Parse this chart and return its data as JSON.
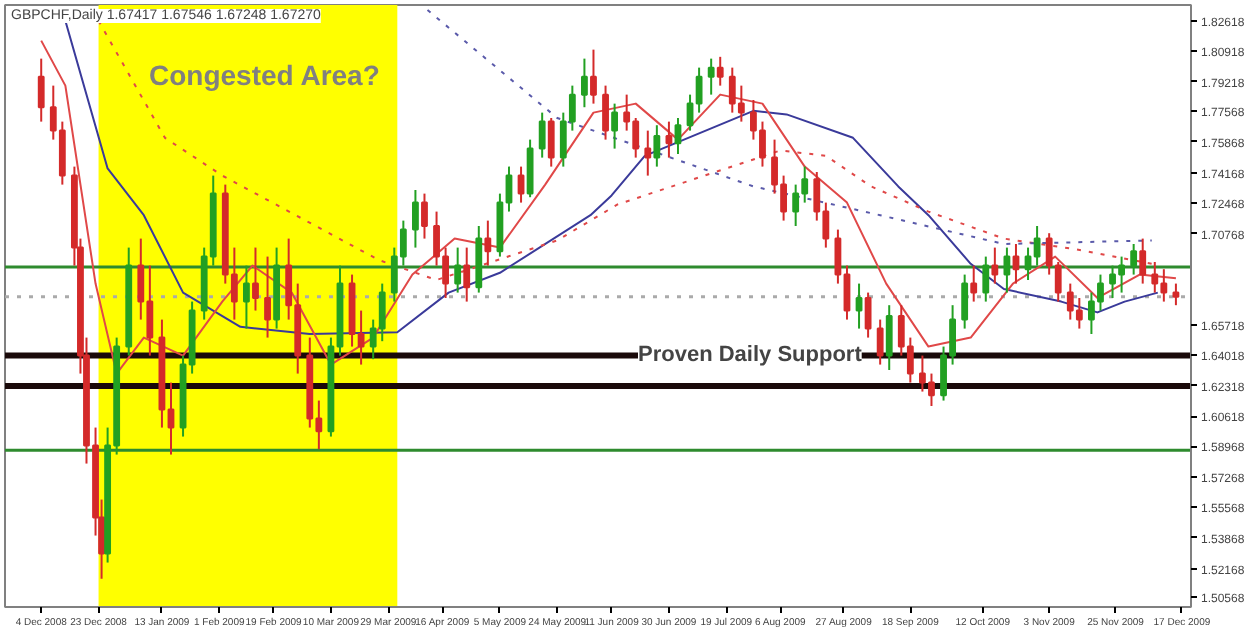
{
  "chart_data": {
    "type": "candlestick",
    "title": "GBPCHF,Daily 1.67417 1.67546 1.67248 1.67270",
    "annotations": [
      "Congested Area?"
    ],
    "x": [
      "2008-12-04",
      "2008-12-08",
      "2008-12-11",
      "2008-12-15",
      "2008-12-17",
      "2008-12-19",
      "2008-12-22",
      "2008-12-24",
      "2008-12-26",
      "2008-12-29",
      "2009-01-02",
      "2009-01-06",
      "2009-01-09",
      "2009-01-13",
      "2009-01-16",
      "2009-01-20",
      "2009-01-23",
      "2009-01-27",
      "2009-01-30",
      "2009-02-03",
      "2009-02-06",
      "2009-02-10",
      "2009-02-13",
      "2009-02-17",
      "2009-02-20",
      "2009-02-24",
      "2009-02-27",
      "2009-03-03",
      "2009-03-06",
      "2009-03-10",
      "2009-03-13",
      "2009-03-17",
      "2009-03-20",
      "2009-03-24",
      "2009-03-27",
      "2009-03-31",
      "2009-04-03",
      "2009-04-07",
      "2009-04-10",
      "2009-04-14",
      "2009-04-17",
      "2009-04-21",
      "2009-04-24",
      "2009-04-28",
      "2009-05-01",
      "2009-05-05",
      "2009-05-08",
      "2009-05-12",
      "2009-05-15",
      "2009-05-19",
      "2009-05-22",
      "2009-05-26",
      "2009-05-29",
      "2009-06-02",
      "2009-06-05",
      "2009-06-09",
      "2009-06-12",
      "2009-06-16",
      "2009-06-19",
      "2009-06-23",
      "2009-06-26",
      "2009-06-30",
      "2009-07-03",
      "2009-07-07",
      "2009-07-10",
      "2009-07-14",
      "2009-07-17",
      "2009-07-21",
      "2009-07-24",
      "2009-07-28",
      "2009-07-31",
      "2009-08-04",
      "2009-08-07",
      "2009-08-11",
      "2009-08-14",
      "2009-08-18",
      "2009-08-21",
      "2009-08-25",
      "2009-08-28",
      "2009-09-01",
      "2009-09-04",
      "2009-09-08",
      "2009-09-11",
      "2009-09-15",
      "2009-09-18",
      "2009-09-22",
      "2009-09-25",
      "2009-09-29",
      "2009-10-02",
      "2009-10-06",
      "2009-10-09",
      "2009-10-13",
      "2009-10-16",
      "2009-10-20",
      "2009-10-23",
      "2009-10-27",
      "2009-10-30",
      "2009-11-03",
      "2009-11-06",
      "2009-11-10",
      "2009-11-13",
      "2009-11-17",
      "2009-11-20",
      "2009-11-24",
      "2009-11-27",
      "2009-12-01",
      "2009-12-04",
      "2009-12-08",
      "2009-12-11",
      "2009-12-15"
    ],
    "ohlc": [
      [
        1.795,
        1.805,
        1.77,
        1.778
      ],
      [
        1.778,
        1.79,
        1.76,
        1.765
      ],
      [
        1.765,
        1.77,
        1.735,
        1.74
      ],
      [
        1.74,
        1.745,
        1.69,
        1.7
      ],
      [
        1.7,
        1.705,
        1.63,
        1.64
      ],
      [
        1.64,
        1.65,
        1.58,
        1.59
      ],
      [
        1.59,
        1.6,
        1.54,
        1.55
      ],
      [
        1.55,
        1.56,
        1.516,
        1.53
      ],
      [
        1.53,
        1.6,
        1.525,
        1.59
      ],
      [
        1.59,
        1.65,
        1.585,
        1.645
      ],
      [
        1.645,
        1.7,
        1.64,
        1.69
      ],
      [
        1.69,
        1.705,
        1.66,
        1.67
      ],
      [
        1.67,
        1.69,
        1.64,
        1.65
      ],
      [
        1.65,
        1.66,
        1.6,
        1.61
      ],
      [
        1.61,
        1.625,
        1.585,
        1.6
      ],
      [
        1.6,
        1.64,
        1.595,
        1.635
      ],
      [
        1.635,
        1.67,
        1.63,
        1.665
      ],
      [
        1.665,
        1.7,
        1.66,
        1.695
      ],
      [
        1.695,
        1.74,
        1.69,
        1.73
      ],
      [
        1.73,
        1.735,
        1.68,
        1.685
      ],
      [
        1.685,
        1.7,
        1.66,
        1.67
      ],
      [
        1.67,
        1.69,
        1.655,
        1.68
      ],
      [
        1.68,
        1.7,
        1.665,
        1.672
      ],
      [
        1.672,
        1.695,
        1.65,
        1.66
      ],
      [
        1.66,
        1.7,
        1.655,
        1.69
      ],
      [
        1.69,
        1.705,
        1.66,
        1.668
      ],
      [
        1.668,
        1.68,
        1.63,
        1.64
      ],
      [
        1.64,
        1.65,
        1.6,
        1.605
      ],
      [
        1.605,
        1.615,
        1.588,
        1.598
      ],
      [
        1.598,
        1.65,
        1.595,
        1.645
      ],
      [
        1.645,
        1.69,
        1.64,
        1.68
      ],
      [
        1.68,
        1.685,
        1.645,
        1.652
      ],
      [
        1.652,
        1.665,
        1.635,
        1.645
      ],
      [
        1.645,
        1.66,
        1.638,
        1.655
      ],
      [
        1.655,
        1.68,
        1.648,
        1.675
      ],
      [
        1.675,
        1.7,
        1.67,
        1.695
      ],
      [
        1.695,
        1.715,
        1.69,
        1.71
      ],
      [
        1.71,
        1.732,
        1.7,
        1.725
      ],
      [
        1.725,
        1.73,
        1.705,
        1.712
      ],
      [
        1.712,
        1.72,
        1.69,
        1.695
      ],
      [
        1.695,
        1.7,
        1.672,
        1.68
      ],
      [
        1.68,
        1.7,
        1.675,
        1.69
      ],
      [
        1.69,
        1.7,
        1.67,
        1.678
      ],
      [
        1.678,
        1.712,
        1.675,
        1.705
      ],
      [
        1.705,
        1.715,
        1.69,
        1.698
      ],
      [
        1.698,
        1.73,
        1.695,
        1.725
      ],
      [
        1.725,
        1.745,
        1.72,
        1.74
      ],
      [
        1.74,
        1.745,
        1.725,
        1.73
      ],
      [
        1.73,
        1.76,
        1.728,
        1.755
      ],
      [
        1.755,
        1.775,
        1.75,
        1.77
      ],
      [
        1.77,
        1.772,
        1.745,
        1.75
      ],
      [
        1.75,
        1.775,
        1.745,
        1.77
      ],
      [
        1.77,
        1.79,
        1.765,
        1.785
      ],
      [
        1.785,
        1.805,
        1.778,
        1.795
      ],
      [
        1.795,
        1.81,
        1.78,
        1.785
      ],
      [
        1.785,
        1.79,
        1.76,
        1.765
      ],
      [
        1.765,
        1.78,
        1.755,
        1.775
      ],
      [
        1.775,
        1.785,
        1.765,
        1.77
      ],
      [
        1.77,
        1.772,
        1.75,
        1.755
      ],
      [
        1.755,
        1.765,
        1.74,
        1.75
      ],
      [
        1.75,
        1.768,
        1.745,
        1.762
      ],
      [
        1.762,
        1.77,
        1.75,
        1.758
      ],
      [
        1.758,
        1.772,
        1.752,
        1.768
      ],
      [
        1.768,
        1.785,
        1.765,
        1.78
      ],
      [
        1.78,
        1.8,
        1.775,
        1.795
      ],
      [
        1.795,
        1.805,
        1.785,
        1.8
      ],
      [
        1.8,
        1.806,
        1.79,
        1.795
      ],
      [
        1.795,
        1.8,
        1.775,
        1.78
      ],
      [
        1.78,
        1.79,
        1.77,
        1.775
      ],
      [
        1.775,
        1.782,
        1.76,
        1.765
      ],
      [
        1.765,
        1.77,
        1.745,
        1.75
      ],
      [
        1.75,
        1.76,
        1.73,
        1.735
      ],
      [
        1.735,
        1.74,
        1.715,
        1.72
      ],
      [
        1.72,
        1.735,
        1.712,
        1.73
      ],
      [
        1.73,
        1.745,
        1.725,
        1.738
      ],
      [
        1.738,
        1.742,
        1.715,
        1.72
      ],
      [
        1.72,
        1.725,
        1.7,
        1.705
      ],
      [
        1.705,
        1.71,
        1.68,
        1.685
      ],
      [
        1.685,
        1.69,
        1.66,
        1.665
      ],
      [
        1.665,
        1.68,
        1.655,
        1.672
      ],
      [
        1.672,
        1.675,
        1.65,
        1.655
      ],
      [
        1.655,
        1.66,
        1.635,
        1.64
      ],
      [
        1.64,
        1.668,
        1.632,
        1.662
      ],
      [
        1.662,
        1.668,
        1.64,
        1.645
      ],
      [
        1.645,
        1.65,
        1.625,
        1.63
      ],
      [
        1.63,
        1.64,
        1.62,
        1.625
      ],
      [
        1.625,
        1.63,
        1.612,
        1.618
      ],
      [
        1.618,
        1.645,
        1.615,
        1.64
      ],
      [
        1.64,
        1.668,
        1.635,
        1.66
      ],
      [
        1.66,
        1.685,
        1.655,
        1.68
      ],
      [
        1.68,
        1.69,
        1.67,
        1.675
      ],
      [
        1.675,
        1.695,
        1.67,
        1.69
      ],
      [
        1.69,
        1.7,
        1.68,
        1.685
      ],
      [
        1.685,
        1.7,
        1.675,
        1.695
      ],
      [
        1.695,
        1.702,
        1.68,
        1.688
      ],
      [
        1.688,
        1.7,
        1.682,
        1.695
      ],
      [
        1.695,
        1.712,
        1.69,
        1.705
      ],
      [
        1.705,
        1.708,
        1.685,
        1.69
      ],
      [
        1.69,
        1.692,
        1.67,
        1.675
      ],
      [
        1.675,
        1.68,
        1.66,
        1.665
      ],
      [
        1.665,
        1.672,
        1.655,
        1.66
      ],
      [
        1.66,
        1.675,
        1.652,
        1.67
      ],
      [
        1.67,
        1.685,
        1.665,
        1.68
      ],
      [
        1.68,
        1.69,
        1.672,
        1.685
      ],
      [
        1.685,
        1.695,
        1.675,
        1.69
      ],
      [
        1.69,
        1.702,
        1.685,
        1.698
      ],
      [
        1.698,
        1.705,
        1.68,
        1.685
      ],
      [
        1.685,
        1.692,
        1.675,
        1.68
      ],
      [
        1.68,
        1.688,
        1.67,
        1.675
      ],
      [
        1.675,
        1.68,
        1.668,
        1.6727
      ]
    ],
    "series": [
      {
        "type": "line",
        "color": "#3a3a9a",
        "line_style": "solid",
        "x": [
          "2008-12-12",
          "2008-12-26",
          "2009-01-07",
          "2009-01-20",
          "2009-02-08",
          "2009-03-03",
          "2009-04-01",
          "2009-04-18",
          "2009-05-05",
          "2009-06-04",
          "2009-06-11",
          "2009-06-22",
          "2009-07-28",
          "2009-08-08",
          "2009-08-30",
          "2009-09-14",
          "2009-09-24",
          "2009-10-08",
          "2009-10-19",
          "2009-11-07",
          "2009-11-19",
          "2009-11-28",
          "2009-12-09"
        ],
        "values": [
          1.826,
          1.744,
          1.718,
          1.675,
          1.656,
          1.652,
          1.653,
          1.675,
          1.686,
          1.718,
          1.729,
          1.751,
          1.776,
          1.774,
          1.761,
          1.734,
          1.718,
          1.691,
          1.677,
          1.67,
          1.664,
          1.67,
          1.675
        ]
      },
      {
        "type": "line",
        "color": "#e04848",
        "line_style": "dotted",
        "x": [
          "2008-12-23",
          "2009-01-14",
          "2009-02-02",
          "2009-03-26",
          "2009-04-14",
          "2009-05-24",
          "2009-06-13",
          "2009-08-06",
          "2009-08-21",
          "2009-09-05",
          "2009-09-24",
          "2009-10-19",
          "2009-11-12",
          "2009-12-07"
        ],
        "values": [
          1.826,
          1.761,
          1.74,
          1.693,
          1.682,
          1.704,
          1.724,
          1.754,
          1.751,
          1.734,
          1.72,
          1.705,
          1.699,
          1.691
        ]
      },
      {
        "type": "line",
        "color": "#5a5aaa",
        "line_style": "dotted",
        "x": [
          "2009-04-11",
          "2009-05-24",
          "2009-07-28",
          "2009-09-08",
          "2009-10-19",
          "2009-12-07"
        ],
        "values": [
          1.832,
          1.772,
          1.734,
          1.718,
          1.702,
          1.704
        ]
      },
      {
        "type": "line",
        "color": "#e04848",
        "line_style": "solid",
        "x": [
          "2008-12-04",
          "2008-12-12",
          "2008-12-22",
          "2008-12-29",
          "2009-01-07",
          "2009-01-20",
          "2009-02-02",
          "2009-02-12",
          "2009-02-25",
          "2009-03-10",
          "2009-03-24",
          "2009-04-06",
          "2009-04-20",
          "2009-05-05",
          "2009-05-20",
          "2009-06-05",
          "2009-06-19",
          "2009-07-03",
          "2009-07-17",
          "2009-07-31",
          "2009-08-14",
          "2009-08-28",
          "2009-09-10",
          "2009-09-24",
          "2009-10-08",
          "2009-10-22",
          "2009-11-05",
          "2009-11-19",
          "2009-12-03",
          "2009-12-15"
        ],
        "values": [
          1.815,
          1.79,
          1.68,
          1.63,
          1.65,
          1.64,
          1.67,
          1.69,
          1.675,
          1.635,
          1.65,
          1.685,
          1.705,
          1.7,
          1.735,
          1.775,
          1.78,
          1.76,
          1.785,
          1.78,
          1.745,
          1.725,
          1.68,
          1.645,
          1.65,
          1.68,
          1.695,
          1.672,
          1.685,
          1.683
        ]
      }
    ],
    "ref_lines": [
      {
        "axis": "y",
        "value": 1.6892,
        "color": "#2e8b2e",
        "line_style": "solid",
        "label": null
      },
      {
        "axis": "y",
        "value": 1.5874,
        "color": "#2e8b2e",
        "line_style": "solid",
        "label": null
      },
      {
        "axis": "y",
        "value": 1.6727,
        "color": "#aaaaaa",
        "line_style": "dotted",
        "label": null
      },
      {
        "axis": "y",
        "value": 1.6401,
        "color": "#1a0a0a",
        "line_style": "solid",
        "label": "Proven Daily Support"
      },
      {
        "axis": "y",
        "value": 1.6231,
        "color": "#1a0a0a",
        "line_style": "solid",
        "label": null
      }
    ],
    "bands": [
      {
        "axis": "x",
        "from": "2008-12-23",
        "to": "2009-04-01",
        "color": "#ffff00",
        "label": null
      }
    ],
    "xlim": [
      "2008-11-22",
      "2009-12-20"
    ],
    "xticks": [
      {
        "value": "2008-12-04",
        "label": "4 Dec 2008"
      },
      {
        "value": "2008-12-23",
        "label": "23 Dec 2008"
      },
      {
        "value": "2009-01-13",
        "label": "13 Jan 2009"
      },
      {
        "value": "2009-02-01",
        "label": "1 Feb 2009"
      },
      {
        "value": "2009-02-19",
        "label": "19 Feb 2009"
      },
      {
        "value": "2009-03-10",
        "label": "10 Mar 2009"
      },
      {
        "value": "2009-03-29",
        "label": "29 Mar 2009"
      },
      {
        "value": "2009-04-16",
        "label": "16 Apr 2009"
      },
      {
        "value": "2009-05-05",
        "label": "5 May 2009"
      },
      {
        "value": "2009-05-24",
        "label": "24 May 2009"
      },
      {
        "value": "2009-06-11",
        "label": "11 Jun 2009"
      },
      {
        "value": "2009-06-30",
        "label": "30 Jun 2009"
      },
      {
        "value": "2009-07-19",
        "label": "19 Jul 2009"
      },
      {
        "value": "2009-08-06",
        "label": "6 Aug 2009"
      },
      {
        "value": "2009-08-27",
        "label": "27 Aug 2009"
      },
      {
        "value": "2009-09-18",
        "label": "18 Sep 2009"
      },
      {
        "value": "2009-10-12",
        "label": "12 Oct 2009"
      },
      {
        "value": "2009-11-03",
        "label": "3 Nov 2009"
      },
      {
        "value": "2009-11-25",
        "label": "25 Nov 2009"
      },
      {
        "value": "2009-12-17",
        "label": "17 Dec 2009"
      }
    ],
    "ylim": [
      1.5003,
      1.8348
    ],
    "yticks": [
      {
        "value": 1.82618,
        "label": "1.82618"
      },
      {
        "value": 1.80918,
        "label": "1.80918"
      },
      {
        "value": 1.79218,
        "label": "1.79218"
      },
      {
        "value": 1.77568,
        "label": "1.77568"
      },
      {
        "value": 1.75868,
        "label": "1.75868"
      },
      {
        "value": 1.74168,
        "label": "1.74168"
      },
      {
        "value": 1.72468,
        "label": "1.72468"
      },
      {
        "value": 1.70768,
        "label": "1.70768"
      },
      {
        "value": 1.65718,
        "label": "1.65718"
      },
      {
        "value": 1.64018,
        "label": "1.64018"
      },
      {
        "value": 1.62318,
        "label": "1.62318"
      },
      {
        "value": 1.60618,
        "label": "1.60618"
      },
      {
        "value": 1.58968,
        "label": "1.58968"
      },
      {
        "value": 1.57268,
        "label": "1.57268"
      },
      {
        "value": 1.55568,
        "label": "1.55568"
      },
      {
        "value": 1.53868,
        "label": "1.53868"
      },
      {
        "value": 1.52168,
        "label": "1.52168"
      },
      {
        "value": 1.50568,
        "label": "1.50568"
      }
    ],
    "grid": false
  }
}
